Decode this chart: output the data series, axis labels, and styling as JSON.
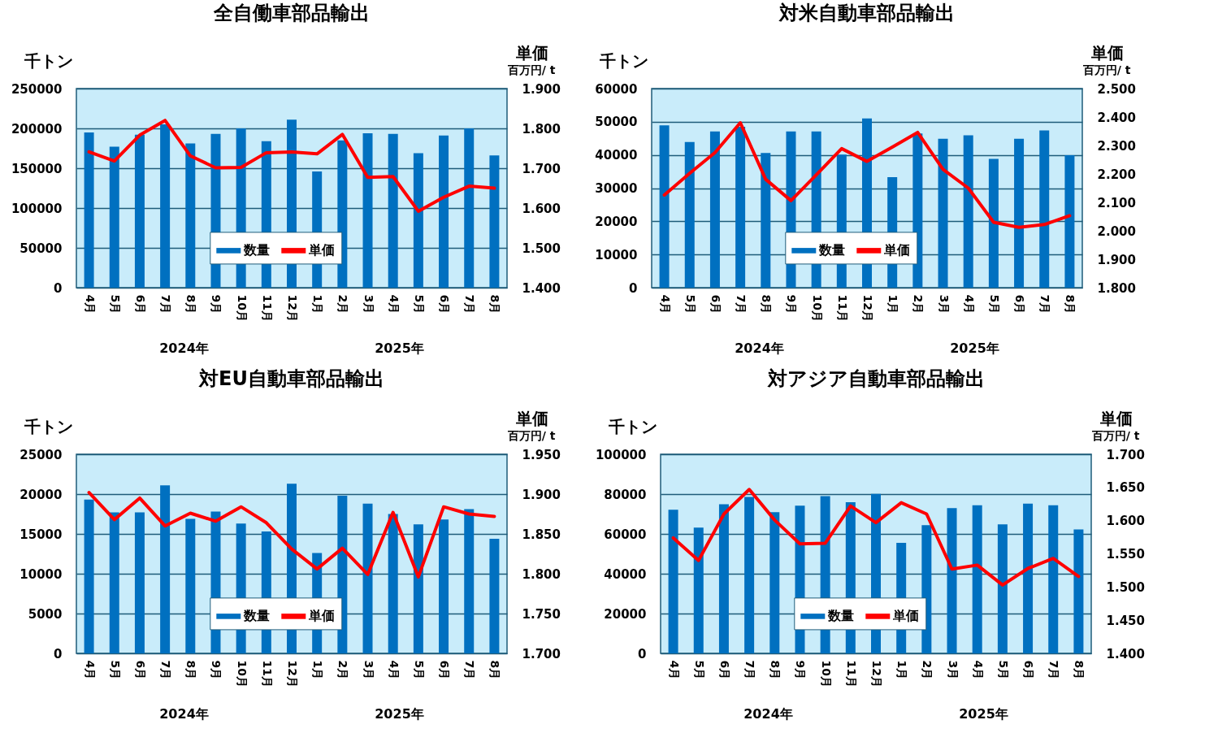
{
  "chart_data": [
    {
      "type": "bar",
      "title": "全自働車部品輸出",
      "ylabel": "千トン",
      "y2label": "単価",
      "categories": [
        "4月",
        "5月",
        "6月",
        "7月",
        "8月",
        "9月",
        "10月",
        "11月",
        "12月",
        "1月",
        "2月",
        "3月",
        "4月",
        "5月",
        "6月",
        "7月",
        "8月"
      ],
      "series": [
        {
          "name": "数量",
          "color": "#0070c0",
          "values": [
            195000,
            177000,
            192000,
            205000,
            181000,
            193000,
            200000,
            184000,
            211000,
            146000,
            185000,
            194000,
            193000,
            169000,
            191000,
            200000,
            166000
          ]
        },
        {
          "name": "単価",
          "type": "line",
          "axis": "y2",
          "color": "#ff0000",
          "values": [
            1.741,
            1.718,
            1.783,
            1.82,
            1.731,
            1.701,
            1.702,
            1.739,
            1.741,
            1.736,
            1.785,
            1.677,
            1.679,
            1.592,
            1.627,
            1.655,
            1.65
          ]
        }
      ],
      "ylim": [
        0,
        250000
      ],
      "yticks": [
        0,
        50000,
        100000,
        150000,
        200000,
        250000
      ],
      "y2lim": [
        1.4,
        1.9
      ],
      "y2ticks": [
        {
          "value": 1.4,
          "label": "1.400"
        },
        {
          "value": 1.5,
          "label": "1.500"
        },
        {
          "value": 1.6,
          "label": "1.600"
        },
        {
          "value": 1.7,
          "label": "1.700"
        },
        {
          "value": 1.8,
          "label": "1.800"
        },
        {
          "value": 1.9,
          "label": "1.900"
        }
      ],
      "grid": "y",
      "legend": "bottom",
      "annotations": [
        "百万円/ t",
        "2024年",
        "2025年"
      ]
    },
    {
      "type": "bar",
      "title": "対米自動車部品輸出",
      "ylabel": "千トン",
      "y2label": "単価",
      "categories": [
        "4月",
        "5月",
        "6月",
        "7月",
        "8月",
        "9月",
        "10月",
        "11月",
        "12月",
        "1月",
        "2月",
        "3月",
        "4月",
        "5月",
        "6月",
        "7月",
        "8月"
      ],
      "series": [
        {
          "name": "数量",
          "color": "#0070c0",
          "values": [
            48900,
            43900,
            47100,
            48500,
            40600,
            47100,
            47100,
            40100,
            51000,
            33300,
            46500,
            44900,
            45900,
            38800,
            44900,
            47400,
            39900
          ]
        },
        {
          "name": "単価",
          "type": "line",
          "axis": "y2",
          "color": "#ff0000",
          "values": [
            2.126,
            2.202,
            2.275,
            2.38,
            2.181,
            2.106,
            2.197,
            2.289,
            2.244,
            2.294,
            2.346,
            2.216,
            2.15,
            2.03,
            2.012,
            2.022,
            2.053
          ]
        }
      ],
      "ylim": [
        0,
        60000
      ],
      "yticks": [
        0,
        10000,
        20000,
        30000,
        40000,
        50000,
        60000
      ],
      "y2lim": [
        1.8,
        2.5
      ],
      "y2ticks": [
        {
          "value": 1.8,
          "label": "1.800"
        },
        {
          "value": 1.9,
          "label": "1.900"
        },
        {
          "value": 2.0,
          "label": "2.000"
        },
        {
          "value": 2.1,
          "label": "2.100"
        },
        {
          "value": 2.2,
          "label": "2.200"
        },
        {
          "value": 2.3,
          "label": "2.300"
        },
        {
          "value": 2.4,
          "label": "2.400"
        },
        {
          "value": 2.5,
          "label": "2.500"
        }
      ],
      "grid": "y",
      "legend": "bottom",
      "annotations": [
        "百万円/ t",
        "2024年",
        "2025年"
      ]
    },
    {
      "type": "bar",
      "title": "対EU自動車部品輸出",
      "ylabel": "千トン",
      "y2label": "単価",
      "categories": [
        "4月",
        "5月",
        "6月",
        "7月",
        "8月",
        "9月",
        "10月",
        "11月",
        "12月",
        "1月",
        "2月",
        "3月",
        "4月",
        "5月",
        "6月",
        "7月",
        "8月"
      ],
      "series": [
        {
          "name": "数量",
          "color": "#0070c0",
          "values": [
            19300,
            17700,
            17700,
            21100,
            16900,
            17800,
            16300,
            15300,
            21300,
            12600,
            19800,
            18800,
            17500,
            16200,
            16800,
            18100,
            14400
          ]
        },
        {
          "name": "単価",
          "type": "line",
          "axis": "y2",
          "color": "#ff0000",
          "values": [
            1.902,
            1.868,
            1.895,
            1.86,
            1.876,
            1.866,
            1.884,
            1.864,
            1.831,
            1.806,
            1.832,
            1.799,
            1.877,
            1.796,
            1.884,
            1.875,
            1.872
          ]
        }
      ],
      "ylim": [
        0,
        25000
      ],
      "yticks": [
        0,
        5000,
        10000,
        15000,
        20000,
        25000
      ],
      "y2lim": [
        1.7,
        1.95
      ],
      "y2ticks": [
        {
          "value": 1.7,
          "label": "1.700"
        },
        {
          "value": 1.75,
          "label": "1.750"
        },
        {
          "value": 1.8,
          "label": "1.800"
        },
        {
          "value": 1.85,
          "label": "1.850"
        },
        {
          "value": 1.9,
          "label": "1.900"
        },
        {
          "value": 1.95,
          "label": "1.950"
        }
      ],
      "grid": "y",
      "legend": "bottom",
      "annotations": [
        "百万円/ t",
        "2024年",
        "2025年"
      ]
    },
    {
      "type": "bar",
      "title": "対アジア自動車部品輸出",
      "ylabel": "千トン",
      "y2label": "単価",
      "categories": [
        "4月",
        "5月",
        "6月",
        "7月",
        "8月",
        "9月",
        "10月",
        "11月",
        "12月",
        "1月",
        "2月",
        "3月",
        "4月",
        "5月",
        "6月",
        "7月",
        "8月"
      ],
      "series": [
        {
          "name": "数量",
          "color": "#0070c0",
          "values": [
            72100,
            63200,
            74900,
            78600,
            70900,
            74200,
            79000,
            75900,
            80100,
            55500,
            64400,
            73000,
            74400,
            64800,
            75200,
            74400,
            62200
          ]
        },
        {
          "name": "単価",
          "type": "line",
          "axis": "y2",
          "color": "#ff0000",
          "values": [
            1.574,
            1.54,
            1.61,
            1.647,
            1.601,
            1.565,
            1.566,
            1.622,
            1.597,
            1.627,
            1.61,
            1.527,
            1.533,
            1.503,
            1.528,
            1.543,
            1.516
          ]
        }
      ],
      "ylim": [
        0,
        100000
      ],
      "yticks": [
        0,
        20000,
        40000,
        60000,
        80000,
        100000
      ],
      "y2lim": [
        1.4,
        1.7
      ],
      "y2ticks": [
        {
          "value": 1.4,
          "label": "1.400"
        },
        {
          "value": 1.45,
          "label": "1.450"
        },
        {
          "value": 1.5,
          "label": "1.500"
        },
        {
          "value": 1.55,
          "label": "1.550"
        },
        {
          "value": 1.6,
          "label": "1.600"
        },
        {
          "value": 1.65,
          "label": "1.650"
        },
        {
          "value": 1.7,
          "label": "1.700"
        }
      ],
      "grid": "y",
      "legend": "bottom",
      "annotations": [
        "百万円/ t",
        "2024年",
        "2025年"
      ]
    }
  ]
}
